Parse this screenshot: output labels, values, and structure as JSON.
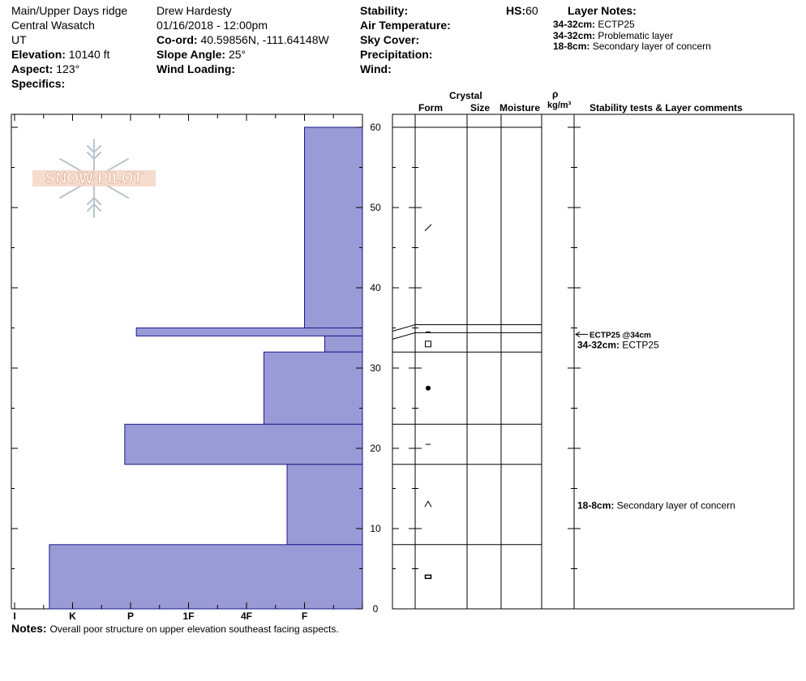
{
  "header": {
    "location": "Main/Upper Days ridge",
    "range": "Central Wasatch",
    "state": "UT",
    "elevation_label": "Elevation:",
    "elevation": "10140 ft",
    "aspect_label": "Aspect:",
    "aspect": "123°",
    "specifics_label": "Specifics:",
    "observer": "Drew Hardesty",
    "datetime": "01/16/2018 - 12:00pm",
    "coord_label": "Co-ord:",
    "coord": "40.59856N, -111.64148W",
    "slope_label": "Slope Angle:",
    "slope": "25°",
    "wind_loading_label": "Wind Loading:",
    "stability_label": "Stability:",
    "air_temp_label": "Air Temperature:",
    "sky_label": "Sky Cover:",
    "precip_label": "Precipitation:",
    "wind_label": "Wind:",
    "hs_label": "HS:",
    "hs": "60",
    "layer_notes_label": "Layer Notes:",
    "layer_notes": [
      {
        "depth": "34-32cm:",
        "text": "ECTP25"
      },
      {
        "depth": "34-32cm:",
        "text": "Problematic layer"
      },
      {
        "depth": "18-8cm:",
        "text": "Secondary layer of concern"
      }
    ]
  },
  "logo": {
    "text": "SNOW PILOT"
  },
  "columns": {
    "crystal": "Crystal",
    "form": "Form",
    "size": "Size",
    "moisture": "Moisture",
    "rho": "ρ",
    "density_unit": "kg/m³",
    "comments": "Stability tests & Layer comments"
  },
  "chart_data": {
    "type": "bar",
    "orientation": "horizontal-step",
    "yaxis": {
      "label": "",
      "range": [
        0,
        60
      ],
      "ticks": [
        0,
        10,
        20,
        30,
        40,
        50,
        60
      ],
      "minor_step": 5
    },
    "xaxis": {
      "categories": [
        "I",
        "K",
        "P",
        "1F",
        "4F",
        "F"
      ],
      "reversed": true
    },
    "hardness_index": {
      "F": 1,
      "4F": 2,
      "1F": 3,
      "P": 4,
      "K": 5,
      "I": 6
    },
    "layers": [
      {
        "top": 60,
        "bottom": 35,
        "hardness": 1,
        "form": "slash",
        "boundary": "straight"
      },
      {
        "top": 35,
        "bottom": 34,
        "hardness": 3.9,
        "form": "dash",
        "boundary": "wave"
      },
      {
        "top": 34,
        "bottom": 32,
        "hardness": 0.65,
        "form": "square",
        "boundary": "wave"
      },
      {
        "top": 32,
        "bottom": 23,
        "hardness": 1.7,
        "form": "dot",
        "boundary": "straight"
      },
      {
        "top": 23,
        "bottom": 18,
        "hardness": 4.1,
        "form": "dash",
        "boundary": "straight"
      },
      {
        "top": 18,
        "bottom": 8,
        "hardness": 1.3,
        "form": "caret",
        "boundary": "straight"
      },
      {
        "top": 8,
        "bottom": 0,
        "hardness": 5.4,
        "form": "rect",
        "boundary": "straight"
      }
    ],
    "tests": [
      {
        "depth": 34,
        "label": "ECTP25 @34cm"
      }
    ],
    "comments": [
      {
        "depth": 33,
        "range": "34-32cm:",
        "text": "ECTP25"
      },
      {
        "depth": 13,
        "range": "18-8cm:",
        "text": "Secondary layer of concern"
      }
    ],
    "bar_color": "#9a9ad6",
    "bar_stroke": "#1a1a8c"
  },
  "notes": {
    "label": "Notes:",
    "text": "Overall poor structure on upper elevation southeast facing aspects."
  }
}
